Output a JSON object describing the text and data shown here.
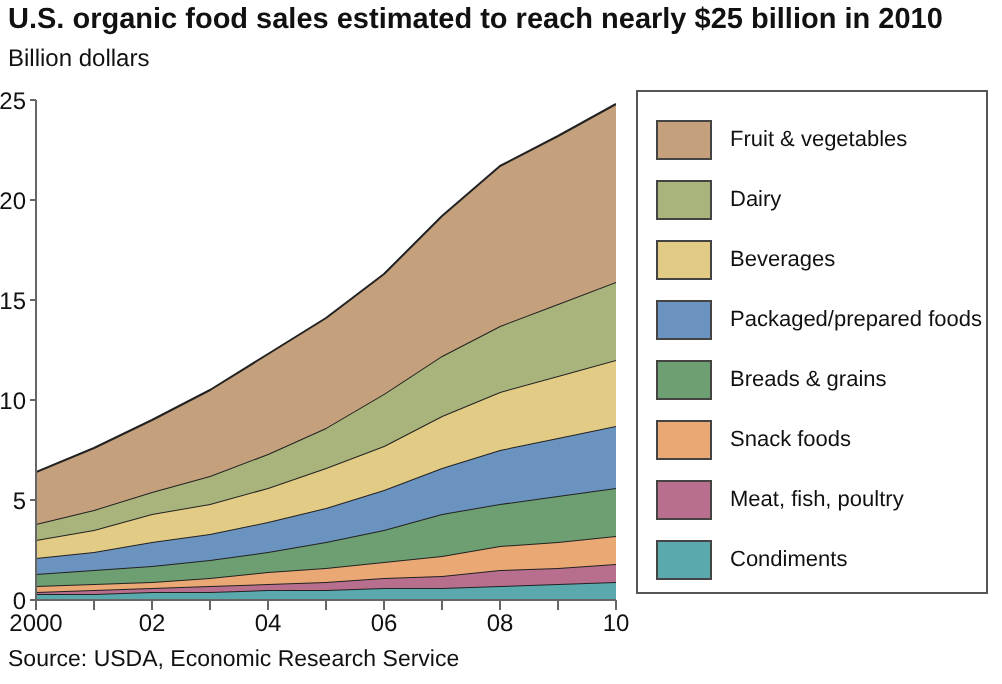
{
  "chart_data": {
    "type": "area",
    "title": "U.S. organic food sales estimated to reach nearly $25 billion in 2010",
    "ylabel": "Billion dollars",
    "annotations": [
      "Source: USDA, Economic Research Service"
    ],
    "x": [
      2000,
      2001,
      2002,
      2003,
      2004,
      2005,
      2006,
      2007,
      2008,
      2009,
      2010
    ],
    "xlim": [
      2000,
      2010
    ],
    "xticks": [
      {
        "value": 2000,
        "label": "2000"
      },
      {
        "value": 2001,
        "label": null
      },
      {
        "value": 2002,
        "label": "02"
      },
      {
        "value": 2003,
        "label": null
      },
      {
        "value": 2004,
        "label": "04"
      },
      {
        "value": 2005,
        "label": null
      },
      {
        "value": 2006,
        "label": "06"
      },
      {
        "value": 2007,
        "label": null
      },
      {
        "value": 2008,
        "label": "08"
      },
      {
        "value": 2009,
        "label": null
      },
      {
        "value": 2010,
        "label": "10"
      }
    ],
    "ylim": [
      0,
      25
    ],
    "yticks": [
      0,
      5,
      10,
      15,
      20,
      25
    ],
    "stacked": true,
    "grid": false,
    "legend": "right",
    "series": [
      {
        "name": "Condiments",
        "color": "#5aa9ac",
        "values": [
          0.3,
          0.3,
          0.4,
          0.4,
          0.5,
          0.5,
          0.6,
          0.6,
          0.7,
          0.8,
          0.9
        ]
      },
      {
        "name": "Meat, fish, poultry",
        "color": "#b86f8e",
        "values": [
          0.1,
          0.2,
          0.2,
          0.3,
          0.3,
          0.4,
          0.5,
          0.6,
          0.8,
          0.8,
          0.9
        ]
      },
      {
        "name": "Snack foods",
        "color": "#eaa874",
        "values": [
          0.3,
          0.3,
          0.3,
          0.4,
          0.6,
          0.7,
          0.8,
          1.0,
          1.2,
          1.3,
          1.4
        ]
      },
      {
        "name": "Breads & grains",
        "color": "#6d9f72",
        "values": [
          0.6,
          0.7,
          0.8,
          0.9,
          1.0,
          1.3,
          1.6,
          2.1,
          2.1,
          2.3,
          2.4
        ]
      },
      {
        "name": "Packaged/prepared foods",
        "color": "#6a93c0",
        "values": [
          0.8,
          0.9,
          1.2,
          1.3,
          1.5,
          1.7,
          2.0,
          2.3,
          2.7,
          2.9,
          3.1
        ]
      },
      {
        "name": "Beverages",
        "color": "#e2cb85",
        "values": [
          0.9,
          1.1,
          1.4,
          1.5,
          1.7,
          2.0,
          2.2,
          2.6,
          2.9,
          3.1,
          3.3
        ]
      },
      {
        "name": "Dairy",
        "color": "#a9b47c",
        "values": [
          0.8,
          1.0,
          1.1,
          1.4,
          1.7,
          2.0,
          2.6,
          3.0,
          3.3,
          3.6,
          3.9
        ]
      },
      {
        "name": "Fruit & vegetables",
        "color": "#c4a07c",
        "values": [
          2.6,
          3.1,
          3.6,
          4.3,
          5.0,
          5.5,
          6.0,
          7.0,
          8.0,
          8.4,
          8.9
        ]
      }
    ]
  }
}
